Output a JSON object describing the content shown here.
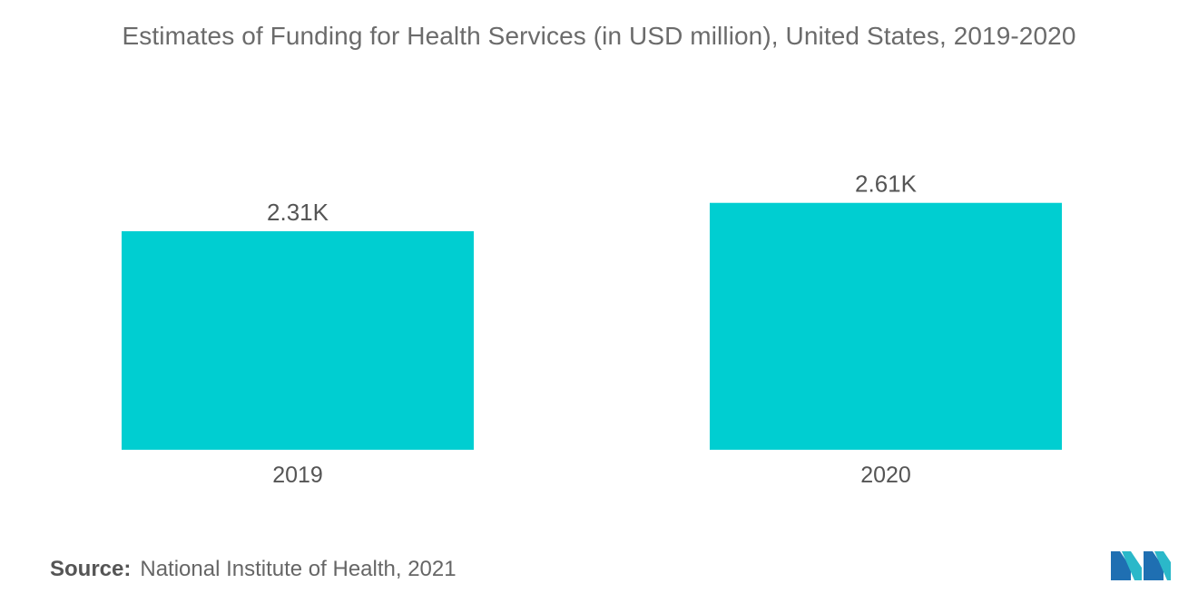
{
  "chart_data": {
    "type": "bar",
    "title": "Estimates of Funding for Health Services (in USD million), United States, 2019-2020",
    "categories": [
      "2019",
      "2020"
    ],
    "values": [
      2310,
      2610
    ],
    "data_labels": [
      "2.31K",
      "2.61K"
    ],
    "xlabel": "",
    "ylabel": "",
    "ylim": [
      0,
      3000
    ],
    "grid": false,
    "legend": "none",
    "bar_color": "#00CED1"
  },
  "source": {
    "label": "Source:",
    "text": "National Institute of Health, 2021"
  },
  "logo": {
    "icon": "mordor-intelligence-logo-icon",
    "colors": [
      "#1f6fb2",
      "#2bb8c9"
    ]
  }
}
